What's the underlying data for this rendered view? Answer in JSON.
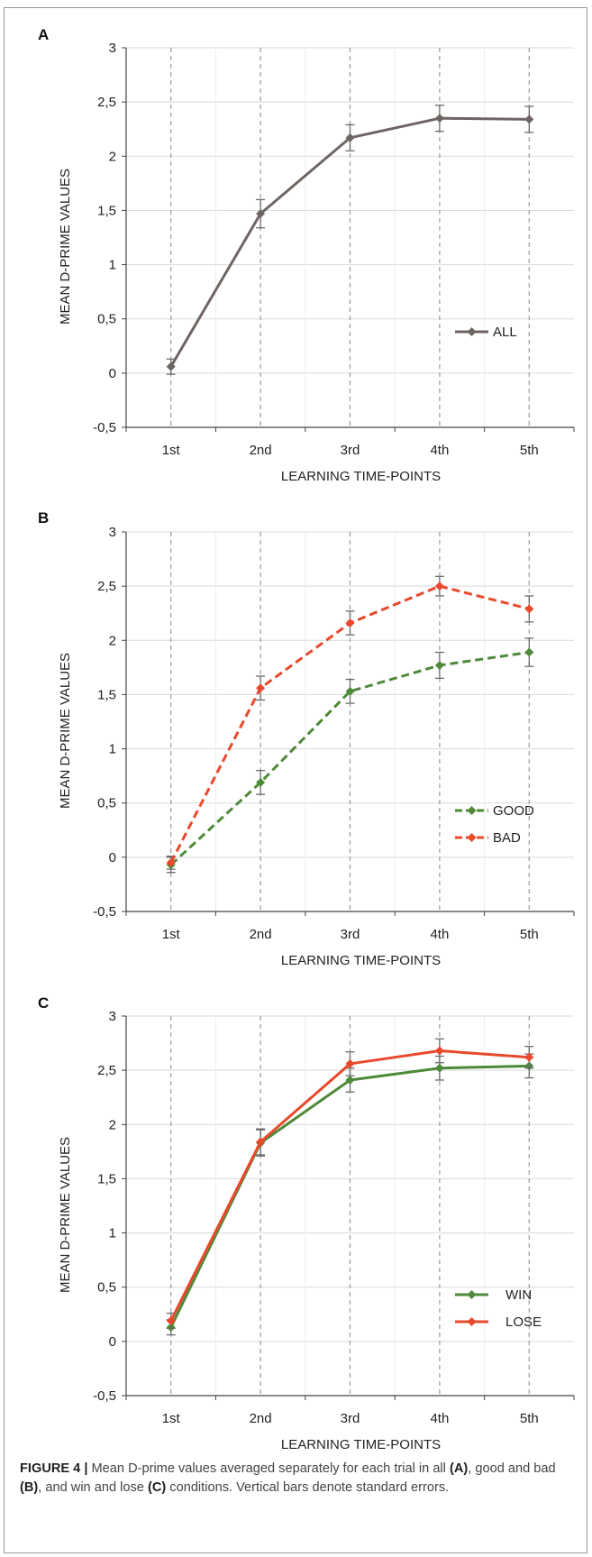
{
  "chart_data": [
    {
      "type": "line",
      "panel": "A",
      "categories": [
        "1st",
        "2nd",
        "3rd",
        "4th",
        "5th"
      ],
      "xlabel": "LEARNING TIME-POINTS",
      "ylabel": "MEAN D-PRIME VALUES",
      "ylim": [
        -0.5,
        3
      ],
      "yticks": [
        "-0,5",
        "0",
        "0,5",
        "1",
        "1,5",
        "2",
        "2,5",
        "3"
      ],
      "grid": true,
      "legend": "bottom-right",
      "series": [
        {
          "name": "ALL",
          "color": "#6e6563",
          "dash": false,
          "values": [
            0.06,
            1.47,
            2.17,
            2.35,
            2.34
          ],
          "errors": [
            0.07,
            0.13,
            0.12,
            0.12,
            0.12
          ]
        }
      ]
    },
    {
      "type": "line",
      "panel": "B",
      "categories": [
        "1st",
        "2nd",
        "3rd",
        "4th",
        "5th"
      ],
      "xlabel": "LEARNING TIME-POINTS",
      "ylabel": "MEAN D-PRIME VALUES",
      "ylim": [
        -0.5,
        3
      ],
      "yticks": [
        "-0,5",
        "0",
        "0,5",
        "1",
        "1,5",
        "2",
        "2,5",
        "3"
      ],
      "grid": true,
      "legend": "bottom-right",
      "series": [
        {
          "name": "GOOD",
          "color": "#4e8a3a",
          "dash": true,
          "values": [
            -0.07,
            0.69,
            1.53,
            1.77,
            1.89
          ],
          "errors": [
            0.07,
            0.11,
            0.11,
            0.12,
            0.13
          ]
        },
        {
          "name": "BAD",
          "color": "#e8492c",
          "dash": true,
          "values": [
            -0.05,
            1.56,
            2.16,
            2.5,
            2.29
          ],
          "errors": [
            0.06,
            0.11,
            0.11,
            0.09,
            0.12
          ]
        }
      ]
    },
    {
      "type": "line",
      "panel": "C",
      "categories": [
        "1st",
        "2nd",
        "3rd",
        "4th",
        "5th"
      ],
      "xlabel": "LEARNING TIME-POINTS",
      "ylabel": "MEAN D-PRIME VALUES",
      "ylim": [
        -0.5,
        3
      ],
      "yticks": [
        "-0,5",
        "0",
        "0,5",
        "1",
        "1,5",
        "2",
        "2,5",
        "3"
      ],
      "grid": true,
      "legend": "bottom-right",
      "series": [
        {
          "name": "WIN",
          "color": "#4e8a3a",
          "dash": false,
          "values": [
            0.13,
            1.83,
            2.41,
            2.52,
            2.54
          ],
          "errors": [
            0.07,
            0.12,
            0.11,
            0.11,
            0.11
          ]
        },
        {
          "name": "LOSE",
          "color": "#e8492c",
          "dash": false,
          "values": [
            0.19,
            1.84,
            2.56,
            2.68,
            2.62
          ],
          "errors": [
            0.07,
            0.12,
            0.11,
            0.11,
            0.1
          ]
        }
      ]
    }
  ],
  "caption": {
    "label": "FIGURE 4 |",
    "text_1": " Mean D-prime values averaged separately for each trial in all ",
    "ref_a": "(A)",
    "text_2": ", good and bad ",
    "ref_b": "(B)",
    "text_3": ", and win and lose ",
    "ref_c": "(C)",
    "text_4": " conditions. Vertical bars denote standard errors."
  }
}
